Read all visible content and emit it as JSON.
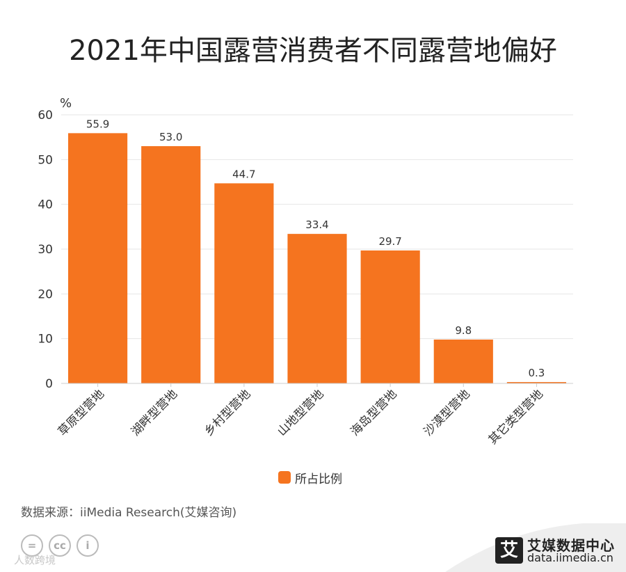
{
  "page": {
    "title": "2021年中国露营消费者不同露营地偏好",
    "source": "数据来源：iiMedia Research(艾媒咨询)",
    "watermark": "人数跨境",
    "brand_logo_char": "艾",
    "brand_name": "艾媒数据中心",
    "brand_url": "data.iimedia.cn"
  },
  "legend": {
    "label": "所占比例"
  },
  "colors": {
    "bar": "#F5741F",
    "grid": "#e6e6e6",
    "axis": "#cccccc",
    "text": "#333333"
  },
  "chart_data": {
    "type": "bar",
    "title": "2021年中国露营消费者不同露营地偏好",
    "ylabel": "%",
    "xlabel": "",
    "categories": [
      "草原型营地",
      "湖畔型营地",
      "乡村型营地",
      "山地型营地",
      "海岛型营地",
      "沙漠型营地",
      "其它类型营地"
    ],
    "series": [
      {
        "name": "所占比例",
        "values": [
          55.9,
          53.0,
          44.7,
          33.4,
          29.7,
          9.8,
          0.3
        ]
      }
    ],
    "value_labels": [
      "55.9",
      "53.0",
      "44.7",
      "33.4",
      "29.7",
      "9.8",
      "0.3"
    ],
    "ylim": [
      0,
      60
    ],
    "yticks": [
      0,
      10,
      20,
      30,
      40,
      50,
      60
    ],
    "grid": true,
    "legend_position": "bottom-center"
  }
}
